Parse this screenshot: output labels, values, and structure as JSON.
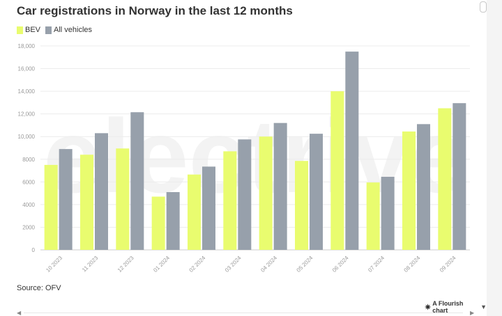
{
  "chart_data": {
    "type": "bar",
    "title": "Car registrations in Norway in the last 12 months",
    "categories": [
      "10 2023",
      "11 2023",
      "12 2023",
      "01 2024",
      "02 2024",
      "03 2024",
      "04 2024",
      "05 2024",
      "06 2024",
      "07 2024",
      "08 2024",
      "09 2024"
    ],
    "series": [
      {
        "name": "BEV",
        "color": "#e9fc6f",
        "values": [
          7500,
          8400,
          8950,
          4700,
          6650,
          8700,
          10000,
          7850,
          14000,
          5950,
          10450,
          12500
        ]
      },
      {
        "name": "All vehicles",
        "color": "#97a0ab",
        "values": [
          8900,
          10300,
          12150,
          5100,
          7350,
          9750,
          11200,
          10250,
          17500,
          6450,
          11100,
          12950
        ]
      }
    ],
    "yticks": [
      0,
      2000,
      4000,
      6000,
      8000,
      10000,
      12000,
      14000,
      16000,
      18000
    ],
    "ytick_labels": [
      "0",
      "2000",
      "4000",
      "6000",
      "8000",
      "10,000",
      "12,000",
      "14,000",
      "16,000",
      "18,000"
    ],
    "ylim": [
      0,
      18000
    ],
    "grid": true,
    "legend_position": "top-left",
    "source": "Source: OFV"
  },
  "watermark": "electrive",
  "footer": {
    "flourish_label": "A Flourish chart"
  }
}
